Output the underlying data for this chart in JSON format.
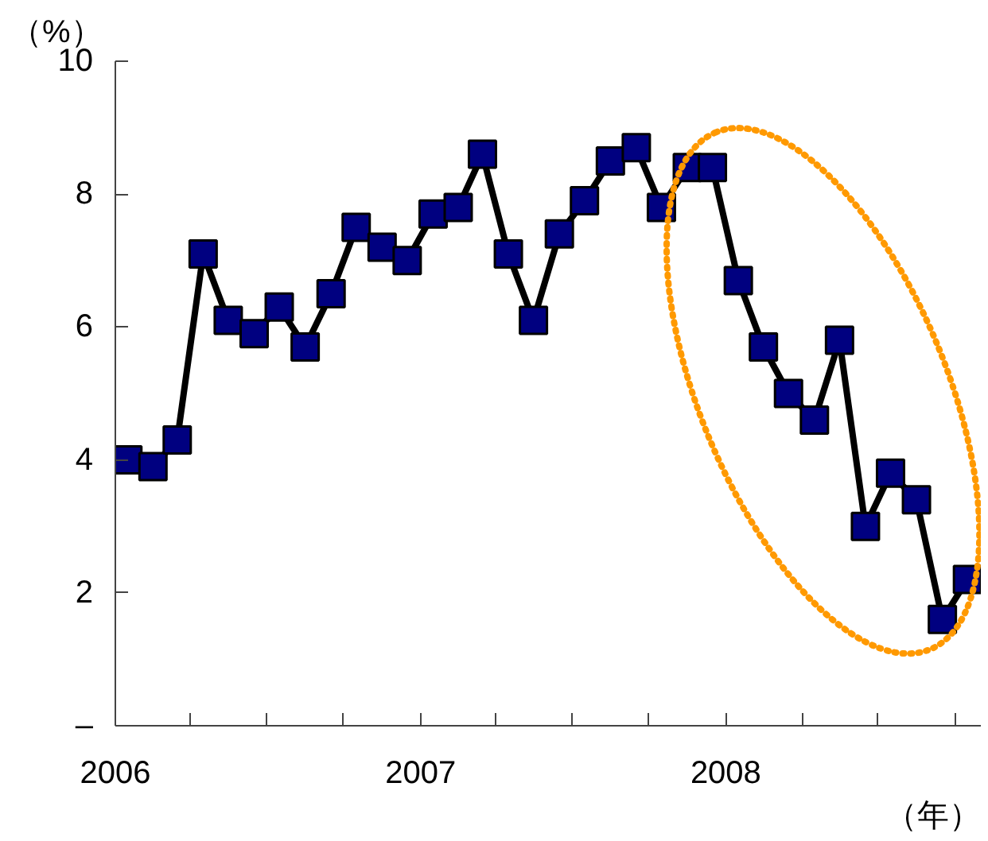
{
  "chart_data": {
    "type": "line",
    "xlabel": "（年）",
    "ylabel": "（%）",
    "x": [
      "2006-01-16",
      "2006-02-15",
      "2006-03-16",
      "2006-04-16",
      "2006-05-16",
      "2006-06-16",
      "2006-07-16",
      "2006-08-16",
      "2006-09-16",
      "2006-10-16",
      "2006-11-16",
      "2006-12-16",
      "2007-01-16",
      "2007-02-15",
      "2007-03-16",
      "2007-04-16",
      "2007-05-16",
      "2007-06-16",
      "2007-07-16",
      "2007-08-16",
      "2007-09-16",
      "2007-10-16",
      "2007-11-16",
      "2007-12-16",
      "2008-01-16",
      "2008-02-15",
      "2008-03-16",
      "2008-04-16",
      "2008-05-16",
      "2008-06-16",
      "2008-07-16",
      "2008-08-16",
      "2008-09-16",
      "2008-10-16"
    ],
    "series": [
      {
        "color": "#000080",
        "values": [
          4.0,
          3.9,
          4.3,
          7.1,
          6.1,
          5.9,
          6.3,
          5.7,
          6.5,
          7.5,
          7.2,
          7.0,
          7.7,
          7.8,
          8.6,
          7.1,
          6.1,
          7.4,
          7.9,
          8.5,
          8.7,
          7.8,
          8.4,
          8.4,
          6.7,
          5.7,
          5.0,
          4.6,
          5.8,
          3.0,
          3.8,
          3.4,
          1.6,
          2.2
        ]
      }
    ],
    "marker": "square",
    "grid": false,
    "xlim": [
      "2006-01-01",
      "2008-11-01"
    ],
    "xticks": [
      {
        "value": "2006-01-01",
        "label": "2006"
      },
      {
        "value": "2006-04-01",
        "label": null
      },
      {
        "value": "2006-07-01",
        "label": null
      },
      {
        "value": "2006-10-01",
        "label": null
      },
      {
        "value": "2007-01-01",
        "label": "2007"
      },
      {
        "value": "2007-04-01",
        "label": null
      },
      {
        "value": "2007-07-01",
        "label": null
      },
      {
        "value": "2007-10-01",
        "label": null
      },
      {
        "value": "2008-01-01",
        "label": "2008"
      },
      {
        "value": "2008-04-01",
        "label": null
      },
      {
        "value": "2008-07-01",
        "label": null
      },
      {
        "value": "2008-10-01",
        "label": null
      }
    ],
    "ylim": [
      0,
      10
    ],
    "yticks": [
      {
        "value": 0,
        "label": "–"
      },
      2,
      4,
      6,
      8,
      10
    ]
  }
}
